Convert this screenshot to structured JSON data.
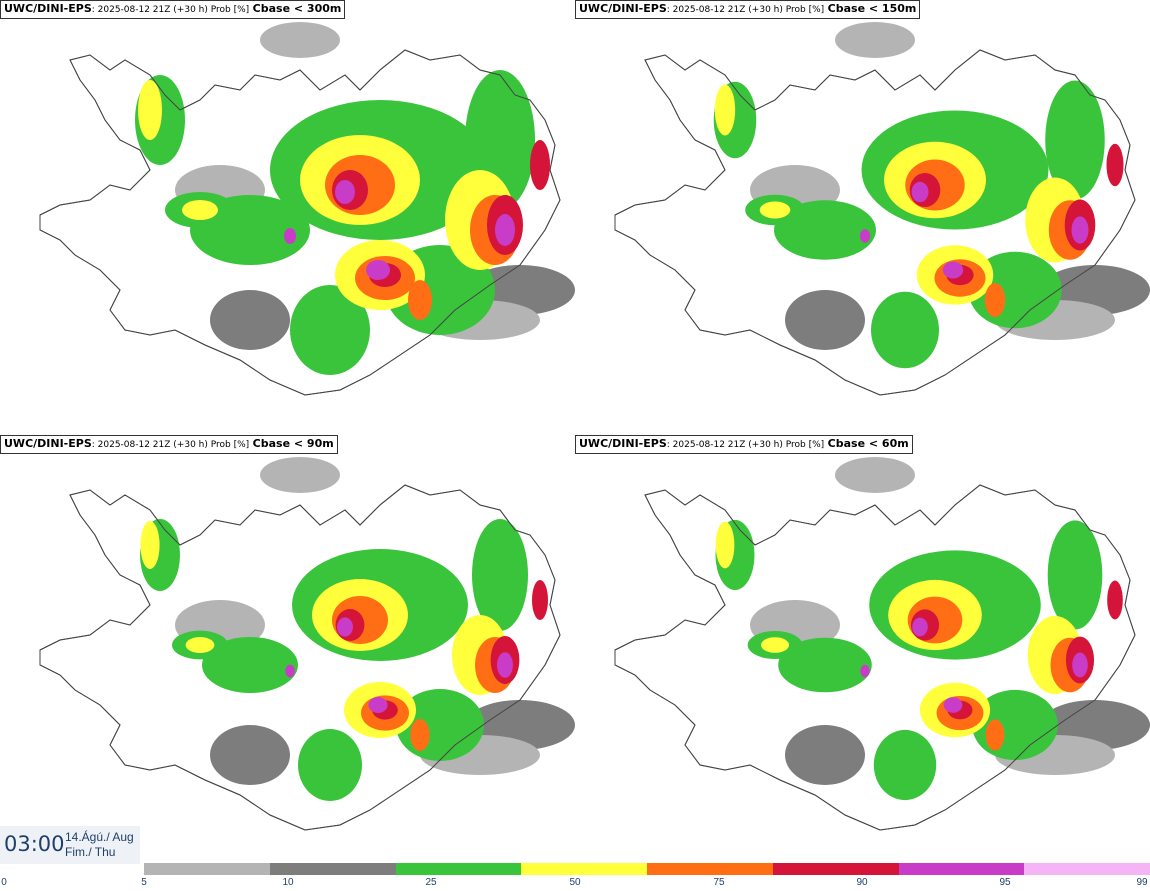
{
  "model": "UWC/DINI-EPS",
  "run_info": ": 2025-08-12 21Z (+30 h) Prob [%]",
  "panels": [
    {
      "threshold": "Cbase < 300m"
    },
    {
      "threshold": "Cbase < 150m"
    },
    {
      "threshold": "Cbase < 90m"
    },
    {
      "threshold": "Cbase < 60m"
    }
  ],
  "valid_time": "03:00",
  "valid_date_line1": "14.Ágú./ Aug",
  "valid_date_line2": "Fim./ Thu",
  "colorbar": {
    "ticks": [
      "0",
      "5",
      "10",
      "25",
      "50",
      "75",
      "90",
      "95",
      "99"
    ],
    "colors": [
      "#b4b4b4",
      "#7d7d7d",
      "#39c43c",
      "#ffff3c",
      "#ff6e14",
      "#d41438",
      "#c83cc8",
      "#f5b4f5"
    ]
  },
  "colors": {
    "land": "#ffffff",
    "coast": "#555555",
    "light_gray": "#b4b4b4",
    "dark_gray": "#7d7d7d",
    "green": "#39c43c",
    "yellow": "#ffff3c",
    "orange": "#ff6e14",
    "red": "#d41438",
    "magenta": "#c83cc8",
    "pink": "#f5b4f5"
  }
}
